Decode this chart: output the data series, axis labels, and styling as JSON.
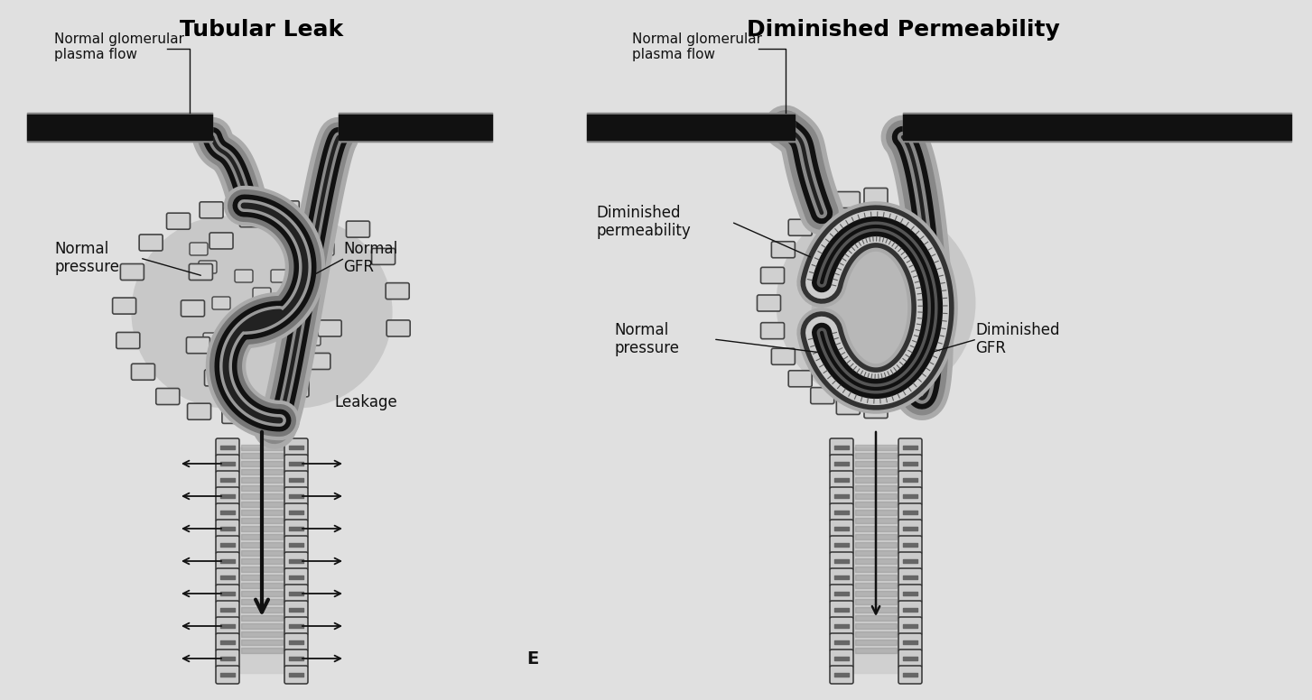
{
  "bg_color": "#e0e0e0",
  "title_left": "Tubular Leak",
  "title_right": "Diminished Permeability",
  "label_left_plasma": "Normal glomerular\nplasma flow",
  "label_right_plasma": "Normal glomerular\nplasma flow",
  "label_left_pressure": "Normal\npressure",
  "label_left_gfr": "Normal\nGFR",
  "label_left_leakage": "Leakage",
  "label_right_pressure": "Normal\npressure",
  "label_right_gfr": "Diminished\nGFR",
  "label_right_permeability": "Diminished\npermeability",
  "label_E": "E"
}
